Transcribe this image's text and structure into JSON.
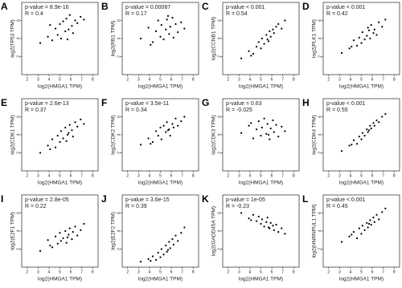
{
  "chart_data": [
    {
      "type": "scatter",
      "panel": "A",
      "annotations": [
        "p-value = 8.9e-16",
        "R = 0.4"
      ],
      "xlabel": "log2(HMGA1 TPM)",
      "ylabel": "log2(TP53 TPM)",
      "xlim": [
        1.5,
        8.5
      ],
      "xticks": [
        2,
        3,
        4,
        5,
        6,
        7,
        8
      ],
      "ylim": [
        0,
        8
      ],
      "yticks": [
        2,
        4,
        6
      ],
      "color": "#000000",
      "x": [
        3.2,
        3.9,
        4.3,
        4.6,
        4.8,
        5.0,
        5.1,
        5.3,
        5.5,
        5.6,
        5.8,
        5.9,
        6.1,
        6.2,
        6.4,
        6.6,
        6.9,
        7.2,
        4.1,
        5.7
      ],
      "values": [
        3.5,
        4.2,
        3.8,
        5.1,
        4.4,
        5.6,
        4.0,
        5.9,
        4.8,
        6.2,
        5.0,
        6.6,
        5.4,
        4.6,
        6.0,
        5.7,
        6.4,
        6.1,
        5.5,
        3.9
      ]
    },
    {
      "type": "scatter",
      "panel": "B",
      "annotations": [
        "p-value = 0.00087",
        "R = 0.17"
      ],
      "xlabel": "log2(HMGA1 TPM)",
      "ylabel": "log2(RB1 TPM)",
      "xlim": [
        1.5,
        8.5
      ],
      "xticks": [
        2,
        3,
        4,
        5,
        6,
        7,
        8
      ],
      "ylim": [
        0,
        8
      ],
      "yticks": [
        2,
        4,
        6
      ],
      "color": "#000000",
      "x": [
        3.2,
        3.9,
        4.3,
        4.6,
        4.8,
        5.0,
        5.1,
        5.3,
        5.5,
        5.6,
        5.8,
        5.9,
        6.1,
        6.2,
        6.4,
        6.6,
        6.9,
        7.2,
        4.1,
        5.7
      ],
      "values": [
        4.0,
        5.2,
        3.6,
        4.8,
        6.0,
        4.2,
        5.5,
        3.9,
        5.0,
        6.1,
        4.5,
        5.3,
        6.3,
        4.1,
        5.6,
        4.7,
        5.8,
        5.1,
        3.3,
        6.5
      ]
    },
    {
      "type": "scatter",
      "panel": "C",
      "annotations": [
        "p-value < 0.001",
        "R = 0.54"
      ],
      "xlabel": "log2(HMGA1 TPM)",
      "ylabel": "log2(CCNB1 TPM)",
      "xlim": [
        1.5,
        8.5
      ],
      "xticks": [
        2,
        3,
        4,
        5,
        6,
        7,
        8
      ],
      "ylim": [
        0,
        8
      ],
      "yticks": [
        2,
        4,
        6
      ],
      "color": "#000000",
      "x": [
        3.2,
        3.9,
        4.3,
        4.6,
        4.8,
        5.0,
        5.1,
        5.3,
        5.5,
        5.6,
        5.8,
        5.9,
        6.1,
        6.2,
        6.4,
        6.6,
        6.9,
        7.2,
        4.1,
        5.7
      ],
      "values": [
        1.8,
        2.6,
        2.3,
        3.1,
        3.6,
        2.9,
        4.0,
        3.4,
        4.4,
        3.9,
        4.8,
        4.2,
        5.0,
        4.6,
        5.3,
        5.6,
        5.1,
        6.0,
        2.1,
        3.7
      ]
    },
    {
      "type": "scatter",
      "panel": "D",
      "annotations": [
        "p-value < 0.001",
        "R = 0.42"
      ],
      "xlabel": "log2(HMGA1 TPM)",
      "ylabel": "log2(PLK1 TPM)",
      "xlim": [
        1.5,
        8.5
      ],
      "xticks": [
        2,
        3,
        4,
        5,
        6,
        7,
        8
      ],
      "ylim": [
        0,
        8
      ],
      "yticks": [
        2,
        4,
        6
      ],
      "color": "#000000",
      "x": [
        3.2,
        3.9,
        4.3,
        4.6,
        4.8,
        5.0,
        5.1,
        5.3,
        5.5,
        5.6,
        5.8,
        5.9,
        6.1,
        6.2,
        6.4,
        6.6,
        6.9,
        7.2,
        4.1,
        5.7
      ],
      "values": [
        2.4,
        2.9,
        3.8,
        3.2,
        4.1,
        3.5,
        4.7,
        3.9,
        4.3,
        5.2,
        4.0,
        5.5,
        4.6,
        5.0,
        4.4,
        5.8,
        5.3,
        6.1,
        3.1,
        4.9
      ]
    },
    {
      "type": "scatter",
      "panel": "E",
      "annotations": [
        "p-value = 2.6e-13",
        "R = 0.37"
      ],
      "xlabel": "log2(HMGA1 TPM)",
      "ylabel": "log2(CDK1 TPM)",
      "xlim": [
        1.5,
        8.5
      ],
      "xticks": [
        2,
        3,
        4,
        5,
        6,
        7,
        8
      ],
      "ylim": [
        0,
        8
      ],
      "yticks": [
        2,
        4,
        6
      ],
      "color": "#000000",
      "x": [
        3.2,
        3.9,
        4.3,
        4.6,
        4.8,
        5.0,
        5.1,
        5.3,
        5.5,
        5.6,
        5.8,
        5.9,
        6.1,
        6.2,
        6.4,
        6.6,
        6.9,
        7.2,
        4.1,
        5.7
      ],
      "values": [
        2.0,
        2.8,
        3.5,
        2.6,
        3.9,
        3.2,
        4.4,
        3.6,
        4.8,
        3.3,
        4.2,
        5.1,
        4.5,
        3.8,
        5.4,
        4.9,
        5.7,
        5.2,
        2.4,
        4.0
      ]
    },
    {
      "type": "scatter",
      "panel": "F",
      "annotations": [
        "p-value = 3.5e-11",
        "R = 0.34"
      ],
      "xlabel": "log2(HMGA1 TPM)",
      "ylabel": "log2(CDK2 TPM)",
      "xlim": [
        1.5,
        8.5
      ],
      "xticks": [
        2,
        3,
        4,
        5,
        6,
        7,
        8
      ],
      "ylim": [
        0,
        8
      ],
      "yticks": [
        2,
        4,
        6
      ],
      "color": "#000000",
      "x": [
        3.2,
        3.9,
        4.3,
        4.6,
        4.8,
        5.0,
        5.1,
        5.3,
        5.5,
        5.6,
        5.8,
        5.9,
        6.1,
        6.2,
        6.4,
        6.6,
        6.9,
        7.2,
        4.1,
        5.7
      ],
      "values": [
        2.9,
        3.6,
        3.2,
        4.4,
        3.9,
        4.8,
        3.5,
        5.0,
        4.3,
        5.4,
        4.6,
        3.9,
        5.2,
        4.8,
        5.8,
        5.0,
        5.5,
        6.0,
        3.0,
        4.5
      ]
    },
    {
      "type": "scatter",
      "panel": "G",
      "annotations": [
        "p-value = 0.63",
        "R = -0.025"
      ],
      "xlabel": "log2(HMGA1 TPM)",
      "ylabel": "log2(CDK3 TPM)",
      "xlim": [
        1.5,
        8.5
      ],
      "xticks": [
        2,
        3,
        4,
        5,
        6,
        7,
        8
      ],
      "ylim": [
        0,
        8
      ],
      "yticks": [
        2,
        4,
        6
      ],
      "color": "#000000",
      "x": [
        3.2,
        3.9,
        4.3,
        4.6,
        4.8,
        5.0,
        5.1,
        5.3,
        5.5,
        5.6,
        5.8,
        5.9,
        6.1,
        6.2,
        6.4,
        6.6,
        6.9,
        7.2,
        4.1,
        5.7
      ],
      "values": [
        4.2,
        5.0,
        3.6,
        4.6,
        5.5,
        3.9,
        4.8,
        5.8,
        4.1,
        5.2,
        3.5,
        4.7,
        5.6,
        4.3,
        5.1,
        3.8,
        4.9,
        4.4,
        5.3,
        4.0
      ]
    },
    {
      "type": "scatter",
      "panel": "H",
      "annotations": [
        "p-value < 0.001",
        "R = 0.55"
      ],
      "xlabel": "log2(HMGA1 TPM)",
      "ylabel": "log2(CDK4 TPM)",
      "xlim": [
        1.5,
        8.5
      ],
      "xticks": [
        2,
        3,
        4,
        5,
        6,
        7,
        8
      ],
      "ylim": [
        0,
        8
      ],
      "yticks": [
        2,
        4,
        6
      ],
      "color": "#000000",
      "x": [
        3.2,
        3.9,
        4.3,
        4.6,
        4.8,
        5.0,
        5.1,
        5.3,
        5.5,
        5.6,
        5.8,
        5.9,
        6.1,
        6.2,
        6.4,
        6.6,
        6.9,
        7.2,
        4.1,
        5.7
      ],
      "values": [
        2.2,
        2.8,
        3.4,
        3.0,
        3.8,
        3.5,
        4.2,
        3.9,
        4.6,
        4.3,
        5.0,
        4.7,
        5.3,
        5.0,
        5.6,
        5.4,
        6.0,
        6.3,
        2.9,
        4.5
      ]
    },
    {
      "type": "scatter",
      "panel": "I",
      "annotations": [
        "p-value = 2.8e-05",
        "R = 0.22"
      ],
      "xlabel": "log2(HMGA1 TPM)",
      "ylabel": "log2(E2F1 TPM)",
      "xlim": [
        1.5,
        8.5
      ],
      "xticks": [
        2,
        3,
        4,
        5,
        6,
        7,
        8
      ],
      "ylim": [
        0,
        8
      ],
      "yticks": [
        2,
        4,
        6
      ],
      "color": "#000000",
      "x": [
        3.2,
        3.9,
        4.3,
        4.6,
        4.8,
        5.0,
        5.1,
        5.3,
        5.5,
        5.6,
        5.8,
        5.9,
        6.1,
        6.2,
        6.4,
        6.6,
        6.9,
        7.2,
        4.1,
        5.7
      ],
      "values": [
        1.8,
        3.0,
        2.2,
        3.4,
        2.6,
        3.8,
        2.9,
        3.2,
        4.0,
        2.7,
        3.6,
        4.3,
        3.1,
        3.9,
        4.5,
        3.5,
        4.1,
        4.8,
        2.4,
        3.3
      ]
    },
    {
      "type": "scatter",
      "panel": "J",
      "annotations": [
        "p-value = 3.6e-15",
        "R = 0.39"
      ],
      "xlabel": "log2(HMGA1 TPM)",
      "ylabel": "log2(E2F2 TPM)",
      "xlim": [
        1.5,
        8.5
      ],
      "xticks": [
        2,
        3,
        4,
        5,
        6,
        7,
        8
      ],
      "ylim": [
        0,
        8
      ],
      "yticks": [
        2,
        4,
        6
      ],
      "color": "#000000",
      "x": [
        3.2,
        3.9,
        4.3,
        4.6,
        4.8,
        5.0,
        5.1,
        5.3,
        5.5,
        5.6,
        5.8,
        5.9,
        6.1,
        6.2,
        6.4,
        6.6,
        6.9,
        7.2,
        4.1,
        5.7
      ],
      "values": [
        0.6,
        0.9,
        1.2,
        0.8,
        1.6,
        1.1,
        2.0,
        1.4,
        2.4,
        1.7,
        2.8,
        2.1,
        3.1,
        2.5,
        3.5,
        2.9,
        3.8,
        4.4,
        0.7,
        1.9
      ]
    },
    {
      "type": "scatter",
      "panel": "K",
      "annotations": [
        "p-value = 1e-05",
        "R = -0.23"
      ],
      "xlabel": "log2(HMGA1 TPM)",
      "ylabel": "log2(GADD45A TPM)",
      "xlim": [
        1.5,
        8.5
      ],
      "xticks": [
        2,
        3,
        4,
        5,
        6,
        7,
        8
      ],
      "ylim": [
        0,
        8
      ],
      "yticks": [
        2,
        4,
        6
      ],
      "color": "#000000",
      "x": [
        3.2,
        3.9,
        4.3,
        4.6,
        4.8,
        5.0,
        5.1,
        5.3,
        5.5,
        5.6,
        5.8,
        5.9,
        6.1,
        6.2,
        6.4,
        6.6,
        6.9,
        7.2,
        4.1,
        5.7
      ],
      "values": [
        6.0,
        5.4,
        5.8,
        5.1,
        5.6,
        4.8,
        5.3,
        4.5,
        5.0,
        5.5,
        4.3,
        4.9,
        4.6,
        4.1,
        4.7,
        3.9,
        4.3,
        3.7,
        5.2,
        4.4
      ]
    },
    {
      "type": "scatter",
      "panel": "L",
      "annotations": [
        "p-value < 0.001",
        "R = 0.45"
      ],
      "xlabel": "log2(HMGA1 TPM)",
      "ylabel": "log2(HNRNPUL1 TPM)",
      "xlim": [
        1.5,
        8.5
      ],
      "xticks": [
        2,
        3,
        4,
        5,
        6,
        7,
        8
      ],
      "ylim": [
        0,
        8
      ],
      "yticks": [
        2,
        4,
        6
      ],
      "color": "#000000",
      "x": [
        3.2,
        3.9,
        4.3,
        4.6,
        4.8,
        5.0,
        5.1,
        5.3,
        5.5,
        5.6,
        5.8,
        5.9,
        6.1,
        6.2,
        6.4,
        6.6,
        6.9,
        7.2,
        4.1,
        5.7
      ],
      "values": [
        2.8,
        3.4,
        3.9,
        3.2,
        4.3,
        3.7,
        4.6,
        4.1,
        4.9,
        4.4,
        5.2,
        4.7,
        5.5,
        5.0,
        5.8,
        5.3,
        6.1,
        6.5,
        3.6,
        4.8
      ]
    }
  ]
}
